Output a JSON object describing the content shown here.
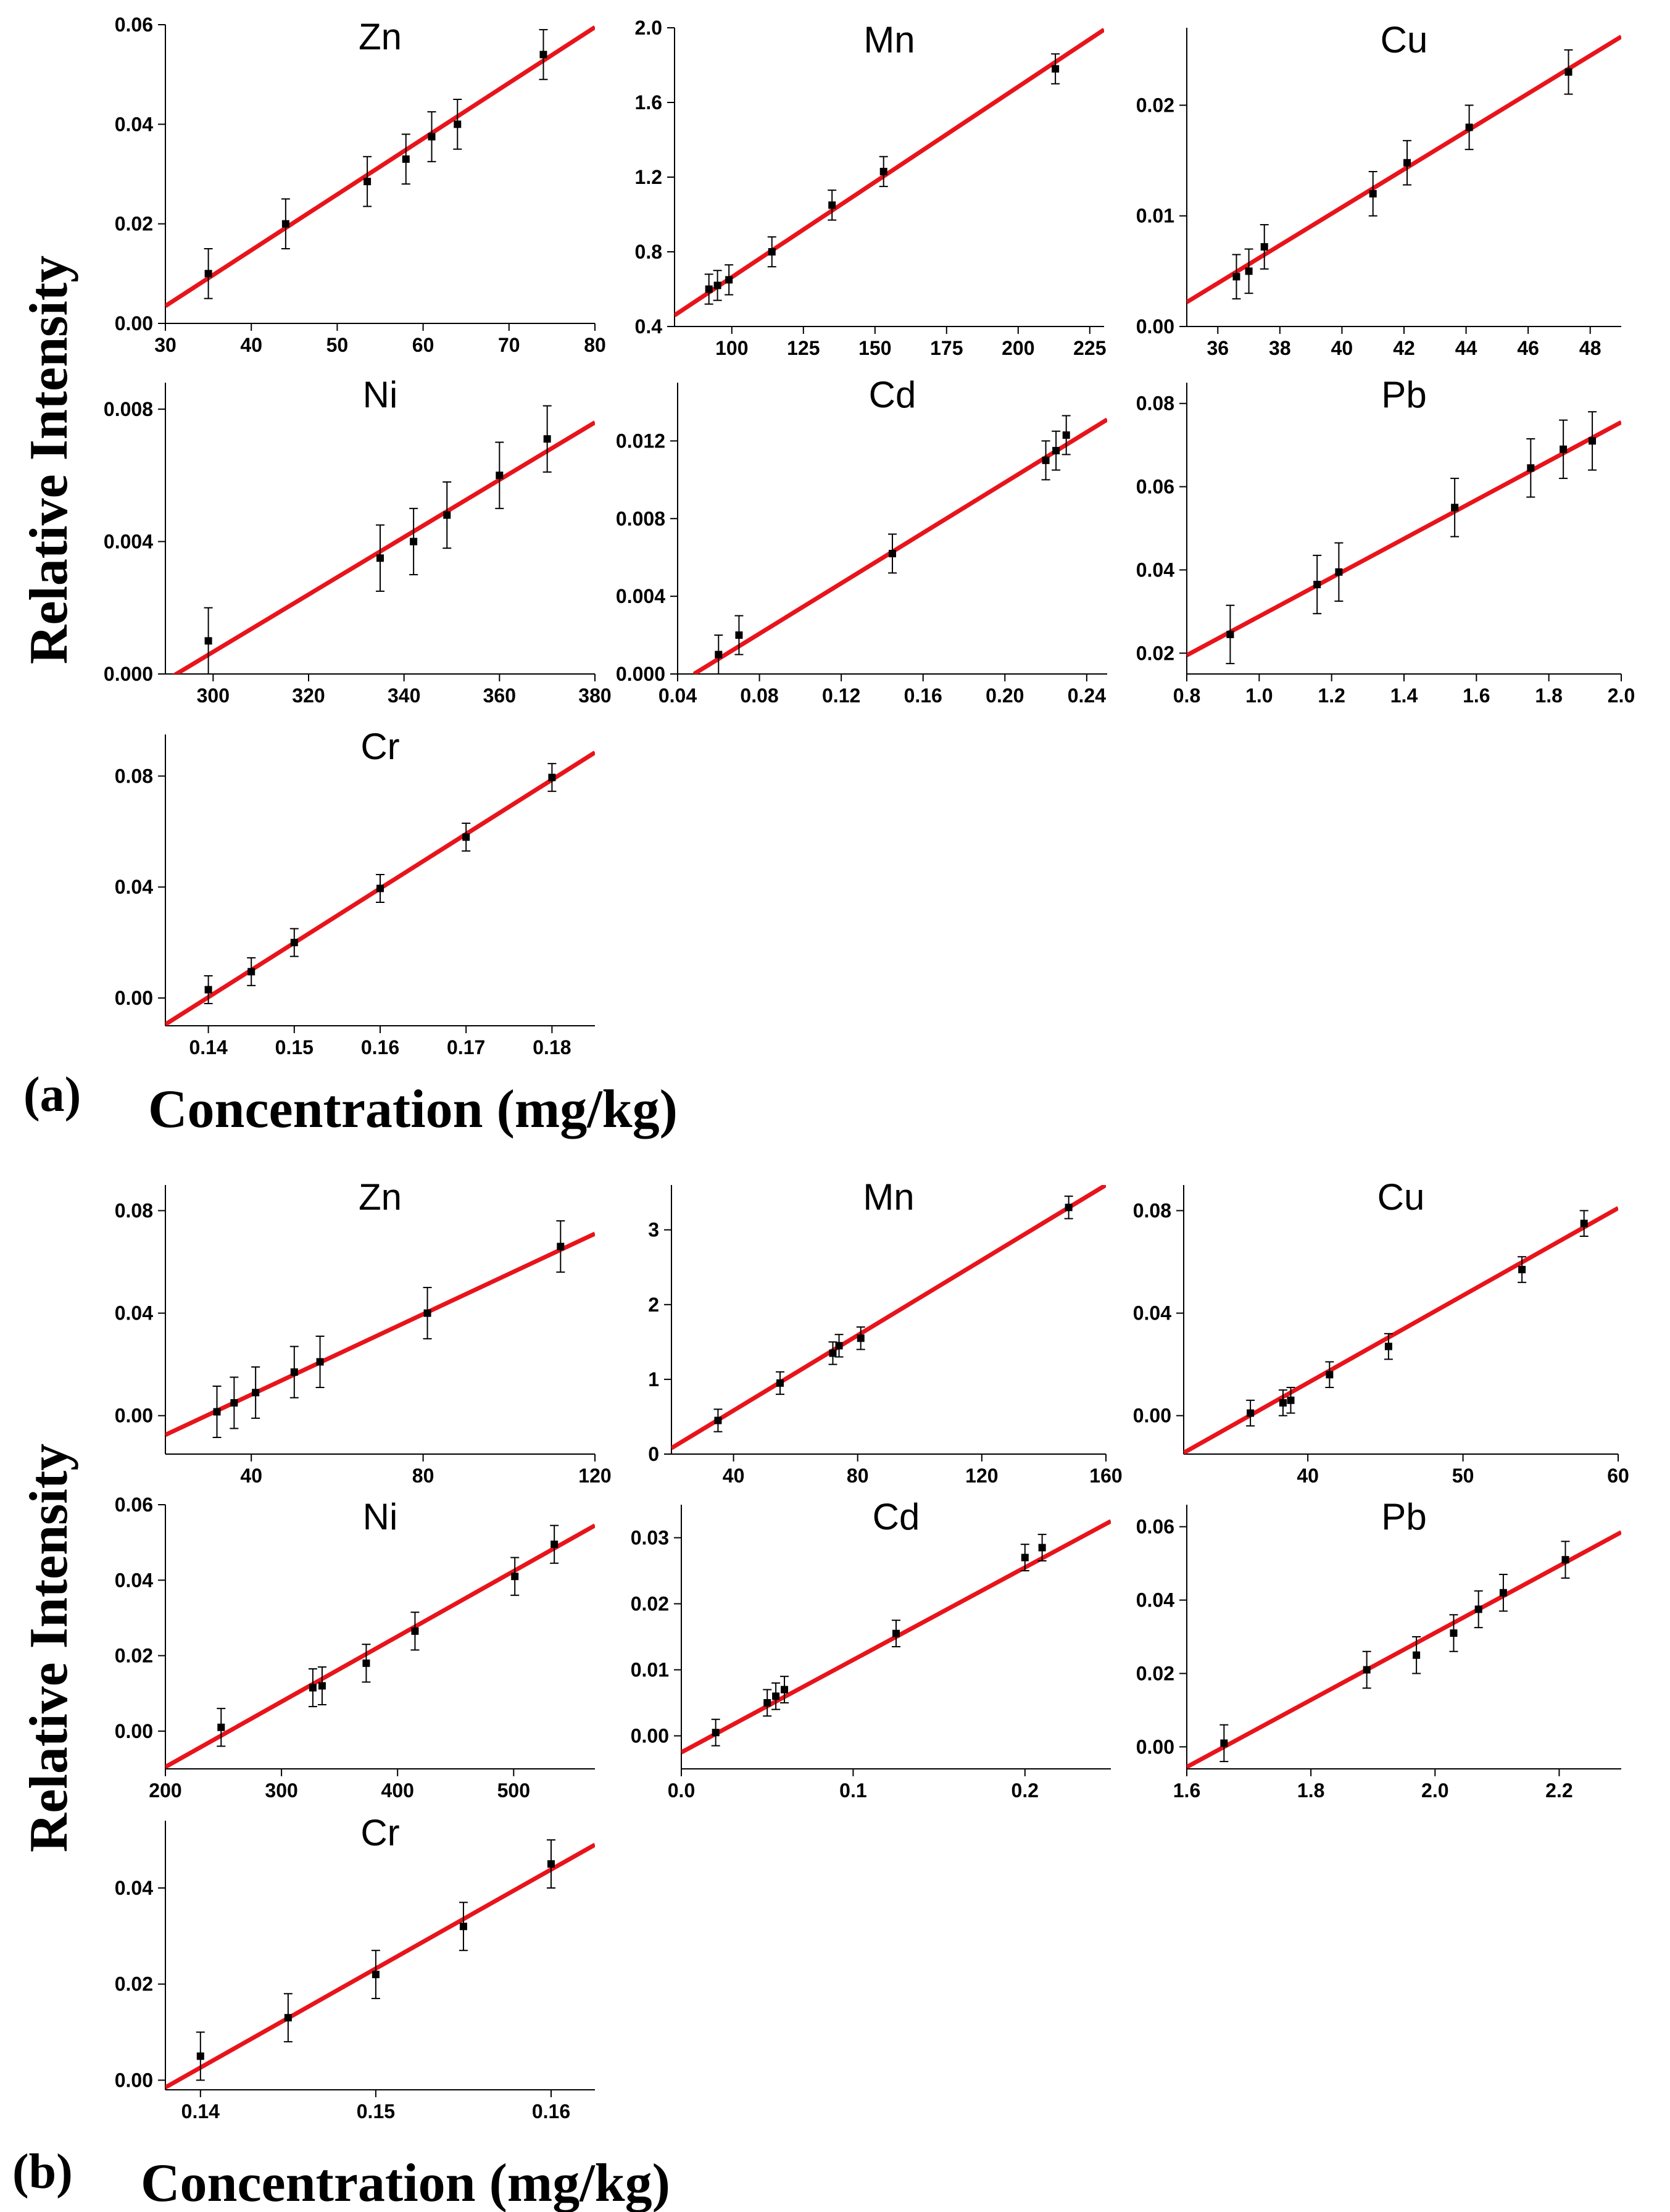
{
  "colors": {
    "fit_line": "#e8141b",
    "marker": "#000000",
    "axis": "#000000"
  },
  "figure": {
    "ylabel": "Relative Intensity",
    "xlabel": "Concentration (mg/kg)",
    "panel_a_label": "(a)",
    "panel_b_label": "(b)"
  },
  "chart_data": [
    {
      "panel": "a",
      "type": "scatter",
      "title": "Zn",
      "xlim": [
        30,
        80
      ],
      "ylim": [
        0,
        0.06
      ],
      "xticks": [
        30,
        40,
        50,
        60,
        70,
        80
      ],
      "xtick_labels": [
        "30",
        "40",
        "50",
        "60",
        "70",
        "80"
      ],
      "yticks": [
        0,
        0.02,
        0.04,
        0.06
      ],
      "ytick_labels": [
        "0.00",
        "0.02",
        "0.04",
        "0.06"
      ],
      "points": [
        [
          35,
          0.01
        ],
        [
          44,
          0.02
        ],
        [
          53.5,
          0.0285
        ],
        [
          58,
          0.033
        ],
        [
          61,
          0.0375
        ],
        [
          64,
          0.04
        ],
        [
          74,
          0.054
        ]
      ],
      "errors": [
        0.005,
        0.005,
        0.005,
        0.005,
        0.005,
        0.005,
        0.005
      ],
      "fit": [
        [
          30,
          0.0035
        ],
        [
          80,
          0.0595
        ]
      ]
    },
    {
      "panel": "a",
      "type": "scatter",
      "title": "Mn",
      "xlim": [
        80,
        230
      ],
      "ylim": [
        0.4,
        2.0
      ],
      "xticks": [
        100,
        125,
        150,
        175,
        200,
        225
      ],
      "xtick_labels": [
        "100",
        "125",
        "150",
        "175",
        "200",
        "225"
      ],
      "yticks": [
        0.4,
        0.8,
        1.2,
        1.6,
        2.0
      ],
      "ytick_labels": [
        "0.4",
        "0.8",
        "1.2",
        "1.6",
        "2.0"
      ],
      "points": [
        [
          92,
          0.6
        ],
        [
          95,
          0.62
        ],
        [
          99,
          0.65
        ],
        [
          114,
          0.8
        ],
        [
          135,
          1.05
        ],
        [
          153,
          1.23
        ],
        [
          213,
          1.78
        ]
      ],
      "errors": [
        0.08,
        0.08,
        0.08,
        0.08,
        0.08,
        0.08,
        0.08
      ],
      "fit": [
        [
          80,
          0.46
        ],
        [
          230,
          1.99
        ]
      ]
    },
    {
      "panel": "a",
      "type": "scatter",
      "title": "Cu",
      "xlim": [
        35,
        49
      ],
      "ylim": [
        0,
        0.027
      ],
      "xticks": [
        36,
        38,
        40,
        42,
        44,
        46,
        48
      ],
      "xtick_labels": [
        "36",
        "38",
        "40",
        "42",
        "44",
        "46",
        "48"
      ],
      "yticks": [
        0,
        0.01,
        0.02
      ],
      "ytick_labels": [
        "0.00",
        "0.01",
        "0.02"
      ],
      "points": [
        [
          36.6,
          0.0045
        ],
        [
          37,
          0.005
        ],
        [
          37.5,
          0.0072
        ],
        [
          41,
          0.012
        ],
        [
          42.1,
          0.0148
        ],
        [
          44.1,
          0.018
        ],
        [
          47.3,
          0.023
        ]
      ],
      "errors": [
        0.002,
        0.002,
        0.002,
        0.002,
        0.002,
        0.002,
        0.002
      ],
      "fit": [
        [
          35,
          0.0022
        ],
        [
          49,
          0.0262
        ]
      ]
    },
    {
      "panel": "a",
      "type": "scatter",
      "title": "Ni",
      "xlim": [
        290,
        380
      ],
      "ylim": [
        0,
        0.0088
      ],
      "xticks": [
        300,
        320,
        340,
        360,
        380
      ],
      "xtick_labels": [
        "300",
        "320",
        "340",
        "360",
        "380"
      ],
      "yticks": [
        0,
        0.004,
        0.008
      ],
      "ytick_labels": [
        "0.000",
        "0.004",
        "0.008"
      ],
      "points": [
        [
          299,
          0.001
        ],
        [
          335,
          0.0035
        ],
        [
          342,
          0.004
        ],
        [
          349,
          0.0048
        ],
        [
          360,
          0.006
        ],
        [
          370,
          0.0071
        ]
      ],
      "errors": [
        0.001,
        0.001,
        0.001,
        0.001,
        0.001,
        0.001
      ],
      "fit": [
        [
          290,
          -0.0002
        ],
        [
          380,
          0.0076
        ]
      ]
    },
    {
      "panel": "a",
      "type": "scatter",
      "title": "Cd",
      "xlim": [
        0.04,
        0.25
      ],
      "ylim": [
        0,
        0.015
      ],
      "xticks": [
        0.04,
        0.08,
        0.12,
        0.16,
        0.2,
        0.24
      ],
      "xtick_labels": [
        "0.04",
        "0.08",
        "0.12",
        "0.16",
        "0.20",
        "0.24"
      ],
      "yticks": [
        0,
        0.004,
        0.008,
        0.012
      ],
      "ytick_labels": [
        "0.000",
        "0.004",
        "0.008",
        "0.012"
      ],
      "points": [
        [
          0.06,
          0.001
        ],
        [
          0.07,
          0.002
        ],
        [
          0.145,
          0.0062
        ],
        [
          0.22,
          0.011
        ],
        [
          0.225,
          0.0115
        ],
        [
          0.23,
          0.0123
        ]
      ],
      "errors": [
        0.001,
        0.001,
        0.001,
        0.001,
        0.001,
        0.001
      ],
      "fit": [
        [
          0.048,
          0
        ],
        [
          0.25,
          0.0131
        ]
      ]
    },
    {
      "panel": "a",
      "type": "scatter",
      "title": "Pb",
      "xlim": [
        0.8,
        2.0
      ],
      "ylim": [
        0.015,
        0.085
      ],
      "xticks": [
        0.8,
        1.0,
        1.2,
        1.4,
        1.6,
        1.8,
        2.0
      ],
      "xtick_labels": [
        "0.8",
        "1.0",
        "1.2",
        "1.4",
        "1.6",
        "1.8",
        "2.0"
      ],
      "yticks": [
        0.02,
        0.04,
        0.06,
        0.08
      ],
      "ytick_labels": [
        "0.02",
        "0.04",
        "0.06",
        "0.08"
      ],
      "points": [
        [
          0.92,
          0.0245
        ],
        [
          1.16,
          0.0365
        ],
        [
          1.22,
          0.0395
        ],
        [
          1.54,
          0.055
        ],
        [
          1.75,
          0.0645
        ],
        [
          1.84,
          0.069
        ],
        [
          1.92,
          0.071
        ]
      ],
      "errors": [
        0.007,
        0.007,
        0.007,
        0.007,
        0.007,
        0.007,
        0.007
      ],
      "fit": [
        [
          0.8,
          0.0195
        ],
        [
          2.0,
          0.0755
        ]
      ]
    },
    {
      "panel": "a",
      "type": "scatter",
      "title": "Cr",
      "xlim": [
        0.135,
        0.185
      ],
      "ylim": [
        -0.01,
        0.095
      ],
      "xticks": [
        0.14,
        0.15,
        0.16,
        0.17,
        0.18
      ],
      "xtick_labels": [
        "0.14",
        "0.15",
        "0.16",
        "0.17",
        "0.18"
      ],
      "yticks": [
        0,
        0.04,
        0.08
      ],
      "ytick_labels": [
        "0.00",
        "0.04",
        "0.08"
      ],
      "points": [
        [
          0.14,
          0.003
        ],
        [
          0.145,
          0.0095
        ],
        [
          0.15,
          0.02
        ],
        [
          0.16,
          0.0395
        ],
        [
          0.17,
          0.058
        ],
        [
          0.18,
          0.0795
        ]
      ],
      "errors": [
        0.005,
        0.005,
        0.005,
        0.005,
        0.005,
        0.005
      ],
      "fit": [
        [
          0.135,
          -0.0095
        ],
        [
          0.185,
          0.0885
        ]
      ]
    },
    {
      "panel": "b",
      "type": "scatter",
      "title": "Zn",
      "xlim": [
        20,
        120
      ],
      "ylim": [
        -0.015,
        0.09
      ],
      "xticks": [
        40,
        80,
        120
      ],
      "xtick_labels": [
        "40",
        "80",
        "120"
      ],
      "yticks": [
        0,
        0.04,
        0.08
      ],
      "ytick_labels": [
        "0.00",
        "0.04",
        "0.08"
      ],
      "points": [
        [
          32,
          0.0015
        ],
        [
          36,
          0.005
        ],
        [
          41,
          0.009
        ],
        [
          50,
          0.017
        ],
        [
          56,
          0.021
        ],
        [
          81,
          0.04
        ],
        [
          112,
          0.066
        ]
      ],
      "errors": [
        0.01,
        0.01,
        0.01,
        0.01,
        0.01,
        0.01,
        0.01
      ],
      "fit": [
        [
          20,
          -0.0075
        ],
        [
          120,
          0.071
        ]
      ]
    },
    {
      "panel": "b",
      "type": "scatter",
      "title": "Mn",
      "xlim": [
        20,
        160
      ],
      "ylim": [
        0,
        3.6
      ],
      "xticks": [
        40,
        80,
        120,
        160
      ],
      "xtick_labels": [
        "40",
        "80",
        "120",
        "160"
      ],
      "yticks": [
        0,
        1,
        2,
        3
      ],
      "ytick_labels": [
        "0",
        "1",
        "2",
        "3"
      ],
      "points": [
        [
          35,
          0.45
        ],
        [
          55,
          0.95
        ],
        [
          72,
          1.35
        ],
        [
          74,
          1.45
        ],
        [
          81,
          1.55
        ],
        [
          148,
          3.3
        ]
      ],
      "errors": [
        0.15,
        0.15,
        0.15,
        0.15,
        0.15,
        0.15
      ],
      "fit": [
        [
          20,
          0.08
        ],
        [
          160,
          3.6
        ]
      ]
    },
    {
      "panel": "b",
      "type": "scatter",
      "title": "Cu",
      "xlim": [
        32,
        60
      ],
      "ylim": [
        -0.015,
        0.09
      ],
      "xticks": [
        40,
        50,
        60
      ],
      "xtick_labels": [
        "40",
        "50",
        "60"
      ],
      "yticks": [
        0,
        0.04,
        0.08
      ],
      "ytick_labels": [
        "0.00",
        "0.04",
        "0.08"
      ],
      "points": [
        [
          36.3,
          0.001
        ],
        [
          38.4,
          0.005
        ],
        [
          38.9,
          0.006
        ],
        [
          41.4,
          0.016
        ],
        [
          45.2,
          0.027
        ],
        [
          53.8,
          0.057
        ],
        [
          57.8,
          0.075
        ]
      ],
      "errors": [
        0.005,
        0.005,
        0.005,
        0.005,
        0.005,
        0.005,
        0.005
      ],
      "fit": [
        [
          32,
          -0.0145
        ],
        [
          60,
          0.081
        ]
      ]
    },
    {
      "panel": "b",
      "type": "scatter",
      "title": "Ni",
      "xlim": [
        200,
        570
      ],
      "ylim": [
        -0.01,
        0.06
      ],
      "xticks": [
        200,
        300,
        400,
        500
      ],
      "xtick_labels": [
        "200",
        "300",
        "400",
        "500"
      ],
      "yticks": [
        0,
        0.02,
        0.04,
        0.06
      ],
      "ytick_labels": [
        "0.00",
        "0.02",
        "0.04",
        "0.06"
      ],
      "points": [
        [
          248,
          0.001
        ],
        [
          327,
          0.0115
        ],
        [
          335,
          0.012
        ],
        [
          373,
          0.018
        ],
        [
          415,
          0.0265
        ],
        [
          501,
          0.041
        ],
        [
          535,
          0.0495
        ]
      ],
      "errors": [
        0.005,
        0.005,
        0.005,
        0.005,
        0.005,
        0.005,
        0.005
      ],
      "fit": [
        [
          200,
          -0.0095
        ],
        [
          570,
          0.0545
        ]
      ]
    },
    {
      "panel": "b",
      "type": "scatter",
      "title": "Cd",
      "xlim": [
        0,
        0.25
      ],
      "ylim": [
        -0.005,
        0.035
      ],
      "xticks": [
        0.0,
        0.1,
        0.2
      ],
      "xtick_labels": [
        "0.0",
        "0.1",
        "0.2"
      ],
      "yticks": [
        0,
        0.01,
        0.02,
        0.03
      ],
      "ytick_labels": [
        "0.00",
        "0.01",
        "0.02",
        "0.03"
      ],
      "points": [
        [
          0.02,
          0.0005
        ],
        [
          0.05,
          0.005
        ],
        [
          0.055,
          0.006
        ],
        [
          0.06,
          0.007
        ],
        [
          0.125,
          0.0155
        ],
        [
          0.2,
          0.027
        ],
        [
          0.21,
          0.0285
        ]
      ],
      "errors": [
        0.002,
        0.002,
        0.002,
        0.002,
        0.002,
        0.002,
        0.002
      ],
      "fit": [
        [
          0,
          -0.0025
        ],
        [
          0.25,
          0.0325
        ]
      ]
    },
    {
      "panel": "b",
      "type": "scatter",
      "title": "Pb",
      "xlim": [
        1.6,
        2.3
      ],
      "ylim": [
        -0.006,
        0.066
      ],
      "xticks": [
        1.6,
        1.8,
        2.0,
        2.2
      ],
      "xtick_labels": [
        "1.6",
        "1.8",
        "2.0",
        "2.2"
      ],
      "yticks": [
        0,
        0.02,
        0.04,
        0.06
      ],
      "ytick_labels": [
        "0.00",
        "0.02",
        "0.04",
        "0.06"
      ],
      "points": [
        [
          1.66,
          0.001
        ],
        [
          1.89,
          0.021
        ],
        [
          1.97,
          0.025
        ],
        [
          2.03,
          0.031
        ],
        [
          2.07,
          0.0375
        ],
        [
          2.11,
          0.042
        ],
        [
          2.21,
          0.051
        ]
      ],
      "errors": [
        0.005,
        0.005,
        0.005,
        0.005,
        0.005,
        0.005,
        0.005
      ],
      "fit": [
        [
          1.6,
          -0.0055
        ],
        [
          2.3,
          0.0585
        ]
      ]
    },
    {
      "panel": "b",
      "type": "scatter",
      "title": "Cr",
      "xlim": [
        0.138,
        0.1625
      ],
      "ylim": [
        -0.002,
        0.054
      ],
      "xticks": [
        0.14,
        0.15,
        0.16
      ],
      "xtick_labels": [
        "0.14",
        "0.15",
        "0.16"
      ],
      "yticks": [
        0,
        0.02,
        0.04
      ],
      "ytick_labels": [
        "0.00",
        "0.02",
        "0.04"
      ],
      "points": [
        [
          0.14,
          0.005
        ],
        [
          0.145,
          0.013
        ],
        [
          0.15,
          0.022
        ],
        [
          0.155,
          0.032
        ],
        [
          0.16,
          0.045
        ]
      ],
      "errors": [
        0.005,
        0.005,
        0.005,
        0.005,
        0.005
      ],
      "fit": [
        [
          0.138,
          -0.0015
        ],
        [
          0.1625,
          0.049
        ]
      ]
    }
  ]
}
